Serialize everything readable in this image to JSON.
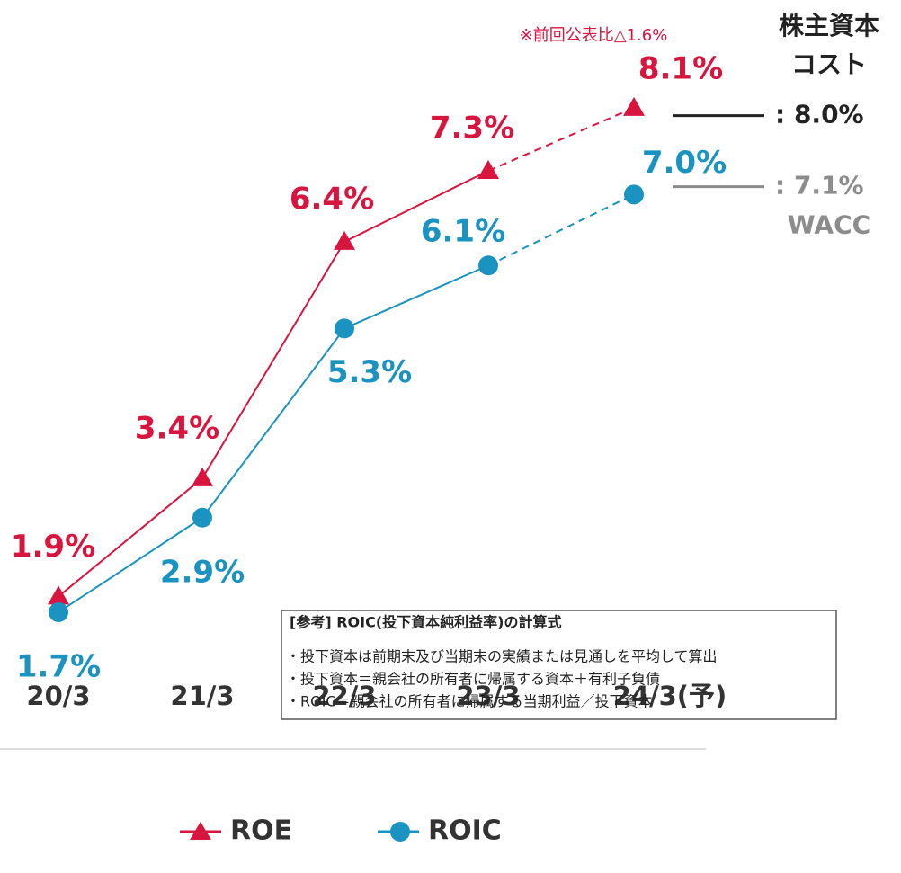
{
  "chart_data": {
    "type": "line",
    "annotation": "※前回公表比△1.6%",
    "categories": [
      "20/3",
      "21/3",
      "22/3",
      "23/3",
      "24/3(予)"
    ],
    "series": [
      {
        "name": "ROE",
        "color": "#d7153f",
        "marker": "triangle",
        "values": [
          1.9,
          3.4,
          6.4,
          7.3,
          8.1
        ],
        "value_labels": [
          "1.9%",
          "3.4%",
          "6.4%",
          "7.3%",
          "8.1%"
        ]
      },
      {
        "name": "ROIC",
        "color": "#1a93c1",
        "marker": "circle",
        "values": [
          1.7,
          2.9,
          5.3,
          6.1,
          7.0
        ],
        "value_labels": [
          "1.7%",
          "2.9%",
          "5.3%",
          "6.1%",
          "7.0%"
        ]
      }
    ],
    "dashed_from": 3,
    "ylim": [
      0,
      9
    ],
    "reference_lines": [
      {
        "name": [
          "株主資本",
          "コスト"
        ],
        "label": ": 8.0%",
        "value": 8.0,
        "color": "#222222"
      },
      {
        "name": [
          "WACC"
        ],
        "label": ": 7.1%",
        "value": 7.1,
        "color": "#8c8c8c"
      }
    ],
    "note": {
      "title": "[参考] ROIC(投下資本純利益率)の計算式",
      "lines": [
        "・投下資本は前期末及び当期末の実績または見通しを平均して算出",
        "・投下資本＝親会社の所有者に帰属する資本＋有利子負債",
        "・ROIC＝親会社の所有者に帰属する当期利益／投下資本"
      ]
    }
  }
}
